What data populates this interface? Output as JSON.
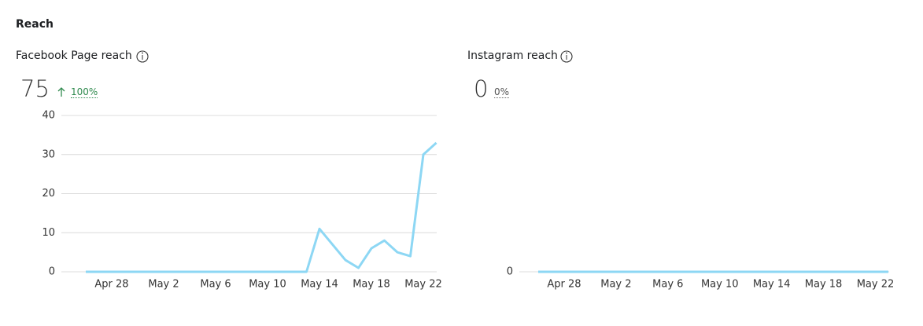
{
  "header": {
    "title": "Reach"
  },
  "chart_data": [
    {
      "type": "line",
      "title": "Facebook Page reach",
      "kpi": 75,
      "change": "100%",
      "categories": [
        null,
        null,
        "Apr 28",
        null,
        null,
        null,
        "May 2",
        null,
        null,
        null,
        "May 6",
        null,
        null,
        null,
        "May 10",
        null,
        null,
        null,
        "May 14",
        null,
        null,
        null,
        "May 18",
        null,
        null,
        null,
        "May 22",
        null
      ],
      "values": [
        0,
        0,
        0,
        0,
        0,
        0,
        0,
        0,
        0,
        0,
        0,
        0,
        0,
        0,
        0,
        0,
        0,
        0,
        11,
        7,
        3,
        1,
        6,
        8,
        5,
        4,
        30,
        33
      ],
      "color": "#8dd7f4",
      "ylim": [
        0,
        40
      ],
      "yticks": [
        0,
        10,
        20,
        30,
        40
      ],
      "grid": true
    },
    {
      "type": "line",
      "title": "Instagram reach",
      "kpi": 0,
      "change": "0%",
      "categories": [
        null,
        null,
        "Apr 28",
        null,
        null,
        null,
        "May 2",
        null,
        null,
        null,
        "May 6",
        null,
        null,
        null,
        "May 10",
        null,
        null,
        null,
        "May 14",
        null,
        null,
        null,
        "May 18",
        null,
        null,
        null,
        "May 22",
        null
      ],
      "values": [
        0,
        0,
        0,
        0,
        0,
        0,
        0,
        0,
        0,
        0,
        0,
        0,
        0,
        0,
        0,
        0,
        0,
        0,
        0,
        0,
        0,
        0,
        0,
        0,
        0,
        0,
        0,
        0
      ],
      "color": "#8dd7f4",
      "ylim": [
        0,
        1
      ],
      "yticks": [
        0
      ],
      "grid": true
    }
  ]
}
